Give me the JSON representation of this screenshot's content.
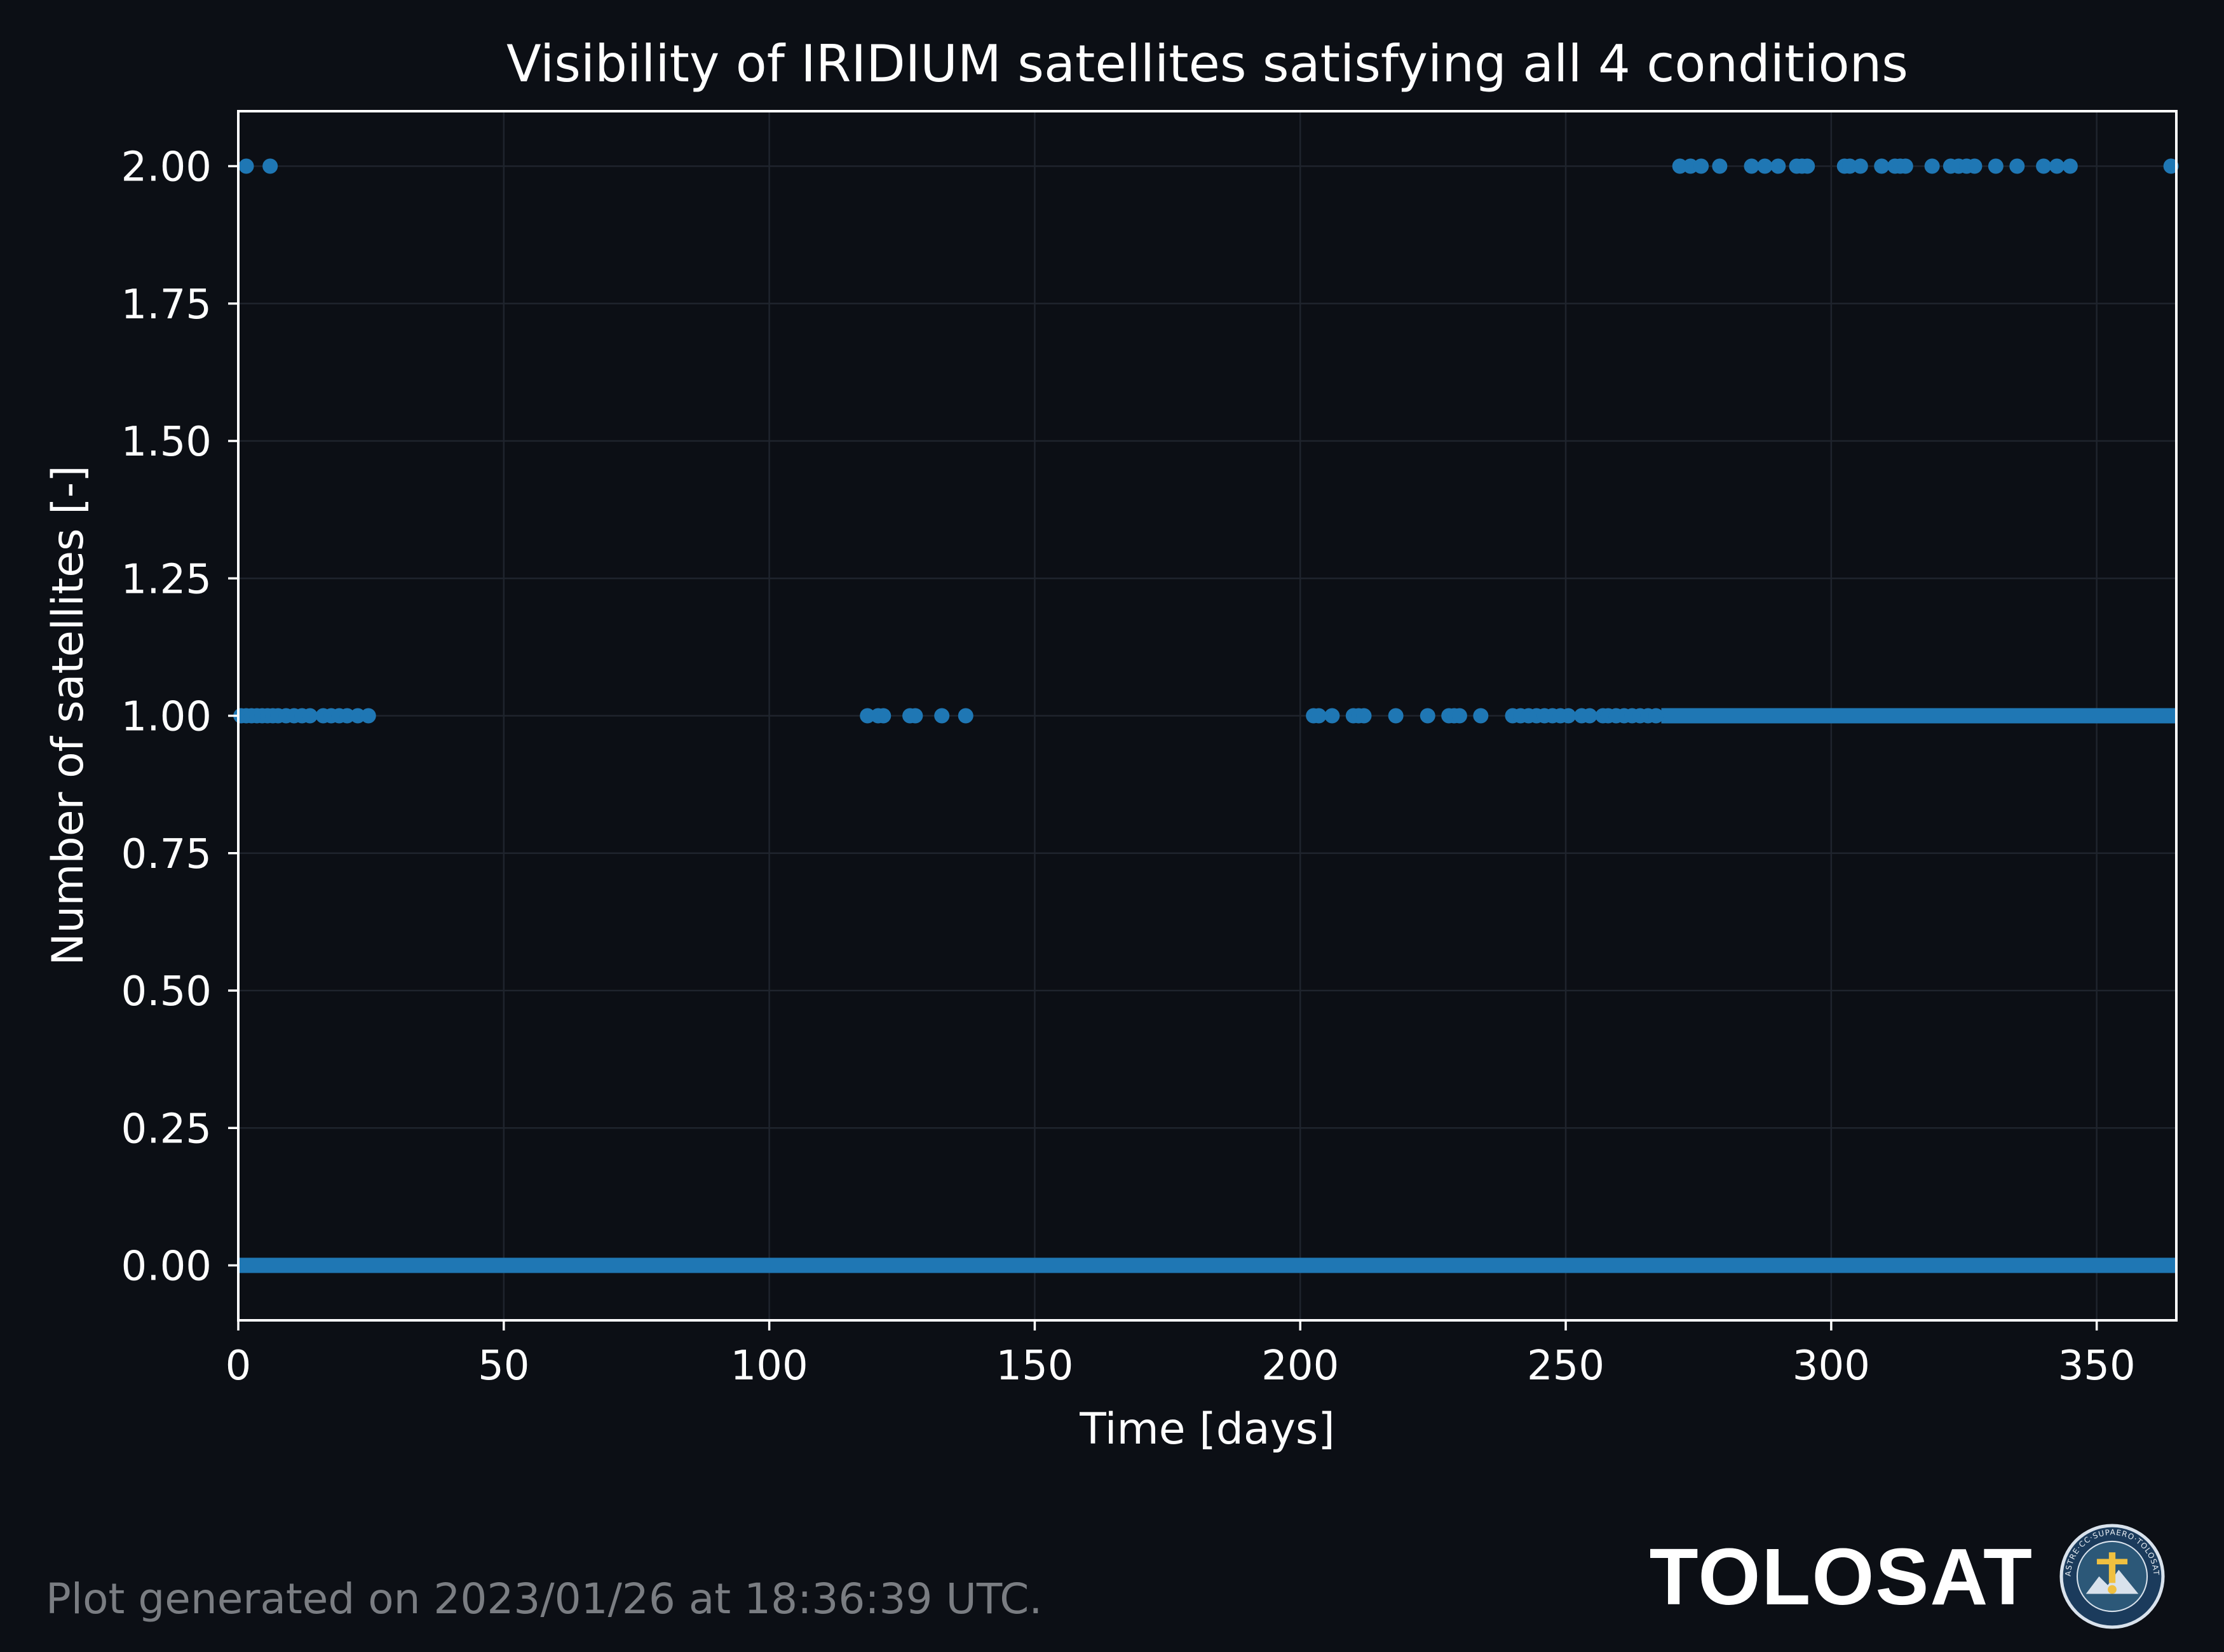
{
  "chart_data": {
    "type": "scatter",
    "title": "Visibility of IRIDIUM satellites satisfying all 4 conditions",
    "xlabel": "Time [days]",
    "ylabel": "Number of satellites [-]",
    "xlim": [
      0,
      365
    ],
    "ylim": [
      -0.1,
      2.1
    ],
    "xticks": [
      0,
      50,
      100,
      150,
      200,
      250,
      300,
      350
    ],
    "yticks": [
      0.0,
      0.25,
      0.5,
      0.75,
      1.0,
      1.25,
      1.5,
      1.75,
      2.0
    ],
    "ytick_labels": [
      "0.00",
      "0.25",
      "0.50",
      "0.75",
      "1.00",
      "1.25",
      "1.50",
      "1.75",
      "2.00"
    ],
    "grid": true,
    "marker_color": "#1f77b4",
    "series": [
      {
        "name": "",
        "continuous_ranges": [
          {
            "x_start": 0,
            "x_end": 365,
            "y": 0
          },
          {
            "x_start": 268,
            "x_end": 365,
            "y": 1
          }
        ],
        "points": [
          {
            "x": 0.5,
            "y": 1
          },
          {
            "x": 1.5,
            "y": 1
          },
          {
            "x": 2.5,
            "y": 1
          },
          {
            "x": 3.5,
            "y": 1
          },
          {
            "x": 4.5,
            "y": 1
          },
          {
            "x": 5.5,
            "y": 1
          },
          {
            "x": 6.5,
            "y": 1
          },
          {
            "x": 7.5,
            "y": 1
          },
          {
            "x": 9,
            "y": 1
          },
          {
            "x": 10.5,
            "y": 1
          },
          {
            "x": 12,
            "y": 1
          },
          {
            "x": 13.5,
            "y": 1
          },
          {
            "x": 16,
            "y": 1
          },
          {
            "x": 17.5,
            "y": 1
          },
          {
            "x": 19,
            "y": 1
          },
          {
            "x": 20.5,
            "y": 1
          },
          {
            "x": 22.5,
            "y": 1
          },
          {
            "x": 24.5,
            "y": 1
          },
          {
            "x": 118.5,
            "y": 1
          },
          {
            "x": 120.5,
            "y": 1
          },
          {
            "x": 121.5,
            "y": 1
          },
          {
            "x": 126.5,
            "y": 1
          },
          {
            "x": 127.5,
            "y": 1
          },
          {
            "x": 132.5,
            "y": 1
          },
          {
            "x": 137,
            "y": 1
          },
          {
            "x": 202.5,
            "y": 1
          },
          {
            "x": 203.5,
            "y": 1
          },
          {
            "x": 206,
            "y": 1
          },
          {
            "x": 210,
            "y": 1
          },
          {
            "x": 211,
            "y": 1
          },
          {
            "x": 212,
            "y": 1
          },
          {
            "x": 218,
            "y": 1
          },
          {
            "x": 224,
            "y": 1
          },
          {
            "x": 228,
            "y": 1
          },
          {
            "x": 229,
            "y": 1
          },
          {
            "x": 230,
            "y": 1
          },
          {
            "x": 234,
            "y": 1
          },
          {
            "x": 240,
            "y": 1
          },
          {
            "x": 241.5,
            "y": 1
          },
          {
            "x": 243,
            "y": 1
          },
          {
            "x": 244.5,
            "y": 1
          },
          {
            "x": 246,
            "y": 1
          },
          {
            "x": 247.5,
            "y": 1
          },
          {
            "x": 249,
            "y": 1
          },
          {
            "x": 250.5,
            "y": 1
          },
          {
            "x": 253,
            "y": 1
          },
          {
            "x": 254.5,
            "y": 1
          },
          {
            "x": 257,
            "y": 1
          },
          {
            "x": 258,
            "y": 1
          },
          {
            "x": 259.5,
            "y": 1
          },
          {
            "x": 261,
            "y": 1
          },
          {
            "x": 262.5,
            "y": 1
          },
          {
            "x": 264,
            "y": 1
          },
          {
            "x": 265.5,
            "y": 1
          },
          {
            "x": 267,
            "y": 1
          },
          {
            "x": 1.5,
            "y": 2
          },
          {
            "x": 6,
            "y": 2
          },
          {
            "x": 271.5,
            "y": 2
          },
          {
            "x": 273.5,
            "y": 2
          },
          {
            "x": 275.5,
            "y": 2
          },
          {
            "x": 279,
            "y": 2
          },
          {
            "x": 285,
            "y": 2
          },
          {
            "x": 287.5,
            "y": 2
          },
          {
            "x": 290,
            "y": 2
          },
          {
            "x": 293.5,
            "y": 2
          },
          {
            "x": 294.5,
            "y": 2
          },
          {
            "x": 295.5,
            "y": 2
          },
          {
            "x": 302.5,
            "y": 2
          },
          {
            "x": 303.5,
            "y": 2
          },
          {
            "x": 305.5,
            "y": 2
          },
          {
            "x": 309.5,
            "y": 2
          },
          {
            "x": 312,
            "y": 2
          },
          {
            "x": 313,
            "y": 2
          },
          {
            "x": 314,
            "y": 2
          },
          {
            "x": 319,
            "y": 2
          },
          {
            "x": 322.5,
            "y": 2
          },
          {
            "x": 324,
            "y": 2
          },
          {
            "x": 325.5,
            "y": 2
          },
          {
            "x": 327,
            "y": 2
          },
          {
            "x": 331,
            "y": 2
          },
          {
            "x": 335,
            "y": 2
          },
          {
            "x": 340,
            "y": 2
          },
          {
            "x": 342.5,
            "y": 2
          },
          {
            "x": 345,
            "y": 2
          },
          {
            "x": 364,
            "y": 2
          }
        ]
      }
    ]
  },
  "footer": {
    "generated_note": "Plot generated on 2023/01/26 at 18:36:39 UTC.",
    "brand_name": "TOLOSAT",
    "logo_icon": "tolosat-emblem-icon",
    "logo_ring_text": "ASTRE·CC·SUPAERO·TOLOSAT"
  }
}
